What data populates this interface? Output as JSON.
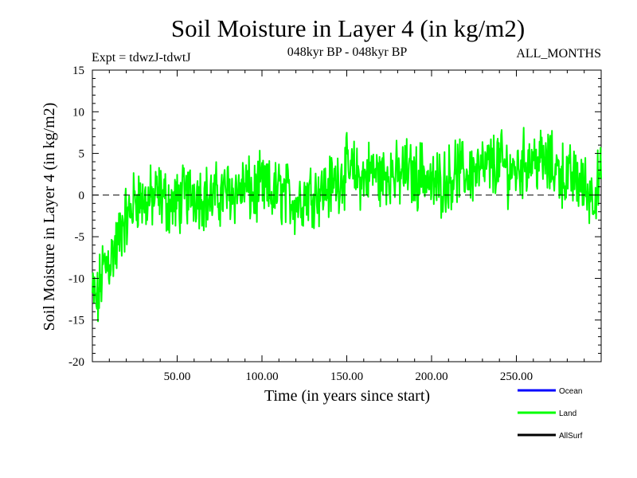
{
  "chart_data": {
    "type": "line",
    "title": "Soil Moisture in Layer 4 (in kg/m2)",
    "subtitle_left": "Expt = tdwzJ-tdwtJ",
    "subtitle_center": "048kyr BP - 048kyr BP",
    "subtitle_right": "ALL_MONTHS",
    "xlabel": "Time (in years since start)",
    "ylabel": "Soil Moisture in Layer 4 (in kg/m2)",
    "xlim": [
      0,
      300
    ],
    "ylim": [
      -20,
      15
    ],
    "x_ticks": [
      50,
      100,
      150,
      200,
      250
    ],
    "x_tick_labels": [
      "50.00",
      "100.00",
      "150.00",
      "200.00",
      "250.00"
    ],
    "y_ticks": [
      -20,
      -15,
      -10,
      -5,
      0,
      5,
      10,
      15
    ],
    "y_tick_labels": [
      "-20",
      "-15",
      "-10",
      "-5",
      "0",
      "5",
      "10",
      "15"
    ],
    "reference_line": 0,
    "legend": [
      {
        "name": "Ocean",
        "color": "#0000ff"
      },
      {
        "name": "Land",
        "color": "#00ff00"
      },
      {
        "name": "AllSurf",
        "color": "#000000"
      }
    ],
    "series": [
      {
        "name": "Land",
        "color": "#00ff00",
        "x": [
          0,
          3,
          6,
          9,
          12,
          15,
          18,
          21,
          24,
          27,
          30,
          35,
          40,
          45,
          50,
          55,
          60,
          65,
          70,
          75,
          80,
          85,
          90,
          95,
          100,
          105,
          110,
          115,
          120,
          125,
          130,
          135,
          140,
          145,
          150,
          155,
          160,
          165,
          170,
          175,
          180,
          185,
          190,
          195,
          200,
          205,
          210,
          215,
          220,
          225,
          230,
          235,
          240,
          245,
          250,
          255,
          260,
          265,
          270,
          275,
          280,
          285,
          290,
          295,
          300
        ],
        "values": [
          -12,
          -13,
          -9,
          -8,
          -7,
          -6,
          -3,
          -3,
          -1,
          0,
          -1,
          -0.5,
          0,
          -1,
          -1,
          0,
          0.5,
          0,
          -0.5,
          0,
          0.5,
          0.5,
          1,
          0,
          1,
          0,
          0.5,
          0,
          -1,
          0,
          0.5,
          0.5,
          1,
          2,
          3,
          2.5,
          2,
          3,
          2,
          3,
          2,
          3,
          2,
          3,
          1,
          1.5,
          2,
          3,
          2.5,
          3,
          3,
          3.5,
          4,
          3,
          3,
          4,
          4.5,
          4,
          3.5,
          3,
          2,
          2,
          1,
          0,
          2
        ]
      }
    ]
  }
}
